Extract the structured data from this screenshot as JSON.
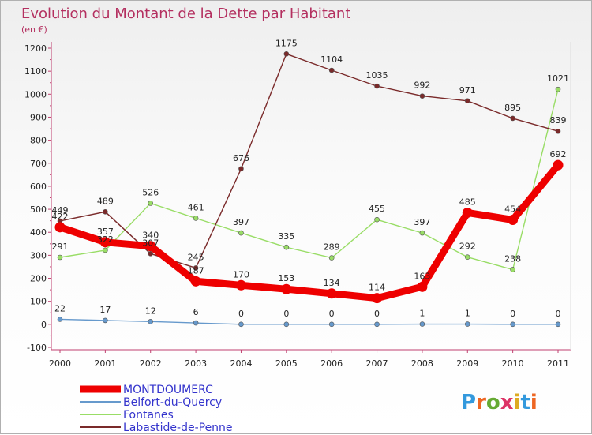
{
  "chart_data": {
    "type": "line",
    "title": "Evolution du Montant de la Dette par Habitant",
    "subtitle": "(en €)",
    "x": [
      "2000",
      "2001",
      "2002",
      "2003",
      "2004",
      "2005",
      "2006",
      "2007",
      "2008",
      "2009",
      "2010",
      "2011"
    ],
    "y_ticks": [
      "-100",
      "0",
      "100",
      "200",
      "300",
      "400",
      "500",
      "600",
      "700",
      "800",
      "900",
      "1000",
      "1100",
      "1200"
    ],
    "ylim": [
      -100,
      1200
    ],
    "grid": false,
    "legend_position": "bottom-left",
    "series": [
      {
        "name": "MONTDOUMERC",
        "color": "#ee0000",
        "values": [
          422,
          357,
          340,
          187,
          170,
          153,
          134,
          114,
          163,
          485,
          454,
          692
        ],
        "labels": [
          "422",
          "357",
          "340",
          "187",
          "170",
          "153",
          "134",
          "114",
          "163",
          "485",
          "454",
          "692"
        ]
      },
      {
        "name": "Belfort-du-Quercy",
        "color": "#6699cc",
        "values": [
          22,
          17,
          12,
          6,
          0,
          0,
          0,
          0,
          1,
          1,
          0,
          0
        ],
        "labels": [
          "22",
          "17",
          "12",
          "6",
          "0",
          "0",
          "0",
          "0",
          "1",
          "1",
          "0",
          "0"
        ]
      },
      {
        "name": "Fontanes",
        "color": "#99dd66",
        "values": [
          291,
          322,
          526,
          461,
          397,
          335,
          289,
          455,
          397,
          292,
          238,
          1021
        ],
        "labels": [
          "291",
          "322",
          "526",
          "461",
          "397",
          "335",
          "289",
          "455",
          "397",
          "292",
          "238",
          "1021"
        ]
      },
      {
        "name": "Labastide-de-Penne",
        "color": "#7a2a2a",
        "values": [
          449,
          489,
          307,
          245,
          676,
          1175,
          1104,
          1035,
          992,
          971,
          895,
          839
        ],
        "labels": [
          "449",
          "489",
          "307",
          "245",
          "676",
          "1175",
          "1104",
          "1035",
          "992",
          "971",
          "895",
          "839"
        ]
      }
    ]
  },
  "watermark": "Proxiti"
}
